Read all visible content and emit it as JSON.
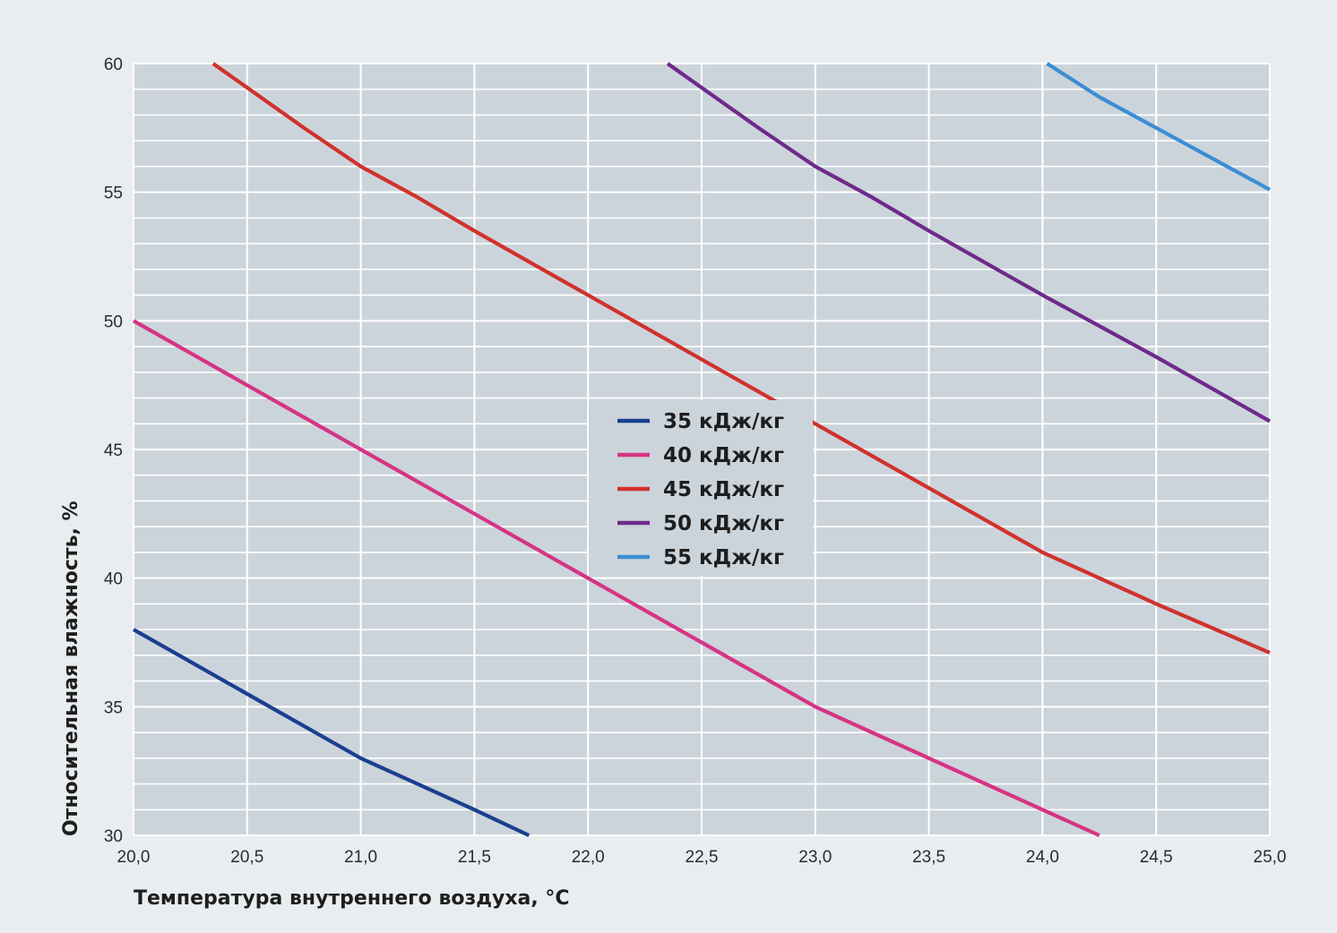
{
  "chart_data": {
    "type": "line",
    "xlabel": "Температура внутреннего воздуха, °C",
    "ylabel": "Относительная влажность, %",
    "xlim": [
      20.0,
      25.0
    ],
    "ylim": [
      30,
      60
    ],
    "x_ticks": [
      20.0,
      20.5,
      21.0,
      21.5,
      22.0,
      22.5,
      23.0,
      23.5,
      24.0,
      24.5,
      25.0
    ],
    "x_tick_labels": [
      "20,0",
      "20,5",
      "21,0",
      "21,5",
      "22,0",
      "22,5",
      "23,0",
      "23,5",
      "24,0",
      "24,5",
      "25,0"
    ],
    "y_ticks": [
      30,
      35,
      40,
      45,
      50,
      55,
      60
    ],
    "y_tick_labels": [
      "30",
      "35",
      "40",
      "45",
      "50",
      "55",
      "60"
    ],
    "grid": true,
    "legend_position": "center",
    "series": [
      {
        "name": "35 кДж/кг",
        "color": "#1a3f8f",
        "points": [
          [
            20.0,
            38.0
          ],
          [
            20.5,
            35.5
          ],
          [
            21.0,
            33.0
          ],
          [
            21.5,
            31.0
          ],
          [
            21.74,
            30.0
          ]
        ]
      },
      {
        "name": "40 кДж/кг",
        "color": "#d63384",
        "points": [
          [
            20.0,
            50.0
          ],
          [
            20.5,
            47.5
          ],
          [
            21.0,
            45.0
          ],
          [
            21.5,
            42.5
          ],
          [
            22.0,
            40.0
          ],
          [
            22.5,
            37.5
          ],
          [
            23.0,
            35.0
          ],
          [
            23.5,
            33.0
          ],
          [
            24.0,
            31.0
          ],
          [
            24.25,
            30.0
          ]
        ]
      },
      {
        "name": "45 кДж/кг",
        "color": "#d0312d",
        "points": [
          [
            20.35,
            60.0
          ],
          [
            20.75,
            57.5
          ],
          [
            21.0,
            56.0
          ],
          [
            21.25,
            54.8
          ],
          [
            21.5,
            53.5
          ],
          [
            22.0,
            51.0
          ],
          [
            22.5,
            48.5
          ],
          [
            23.0,
            46.0
          ],
          [
            23.5,
            43.5
          ],
          [
            24.0,
            41.0
          ],
          [
            24.5,
            39.0
          ],
          [
            25.0,
            37.1
          ]
        ]
      },
      {
        "name": "50 кДж/кг",
        "color": "#6e2a8a",
        "points": [
          [
            22.35,
            60.0
          ],
          [
            22.75,
            57.5
          ],
          [
            23.0,
            56.0
          ],
          [
            23.25,
            54.8
          ],
          [
            23.5,
            53.5
          ],
          [
            24.0,
            51.0
          ],
          [
            24.5,
            48.6
          ],
          [
            25.0,
            46.1
          ]
        ]
      },
      {
        "name": "55 кДж/кг",
        "color": "#3b8dd4",
        "points": [
          [
            24.02,
            60.0
          ],
          [
            24.25,
            58.7
          ],
          [
            24.5,
            57.5
          ],
          [
            25.0,
            55.1
          ]
        ]
      }
    ]
  }
}
